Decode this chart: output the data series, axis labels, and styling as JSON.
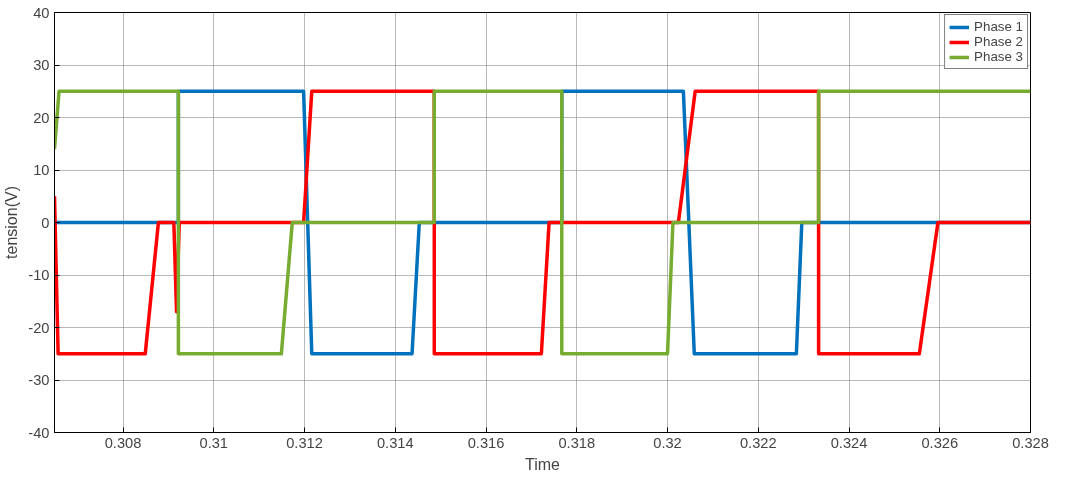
{
  "chart_data": {
    "type": "line",
    "xlabel": "Time",
    "ylabel": "tension(V)",
    "xlim": [
      0.30649,
      0.328
    ],
    "ylim": [
      -40,
      40
    ],
    "xticks": [
      0.308,
      0.31,
      0.312,
      0.314,
      0.316,
      0.318,
      0.32,
      0.322,
      0.324,
      0.326,
      0.328
    ],
    "yticks": [
      -40,
      -30,
      -20,
      -10,
      0,
      10,
      20,
      30,
      40
    ],
    "grid": true,
    "legend": "top right",
    "line_style": "solid",
    "marker": "none",
    "series": [
      {
        "name": "Phase 1",
        "color": "#0072bd",
        "x": [
          0.30649,
          0.30922,
          0.30922,
          0.31198,
          0.31216,
          0.31437,
          0.31453,
          0.31767,
          0.31767,
          0.32035,
          0.32059,
          0.32284,
          0.32296,
          0.328
        ],
        "values": [
          0,
          0,
          25,
          25,
          -25,
          -25,
          0,
          0,
          25,
          25,
          -25,
          -25,
          0,
          0
        ]
      },
      {
        "name": "Phase 2",
        "color": "#ff0000",
        "x": [
          0.30649,
          0.30657,
          0.30849,
          0.30878,
          0.30912,
          0.30918,
          0.30924,
          0.31198,
          0.31216,
          0.31486,
          0.31486,
          0.31722,
          0.31739,
          0.32024,
          0.32061,
          0.32333,
          0.32333,
          0.32555,
          0.32596,
          0.328
        ],
        "values": [
          5,
          -25,
          -25,
          0,
          0,
          -17,
          0,
          0,
          25,
          25,
          -25,
          -25,
          0,
          0,
          25,
          25,
          -25,
          -25,
          0,
          0
        ]
      },
      {
        "name": "Phase 3",
        "color": "#77ac30",
        "x": [
          0.30649,
          0.30659,
          0.30922,
          0.30922,
          0.31149,
          0.31173,
          0.31486,
          0.31486,
          0.31767,
          0.31767,
          0.32,
          0.32012,
          0.32333,
          0.32333,
          0.328
        ],
        "values": [
          14,
          25,
          25,
          -25,
          -25,
          0,
          0,
          25,
          25,
          -25,
          -25,
          0,
          0,
          25,
          25
        ]
      }
    ]
  }
}
